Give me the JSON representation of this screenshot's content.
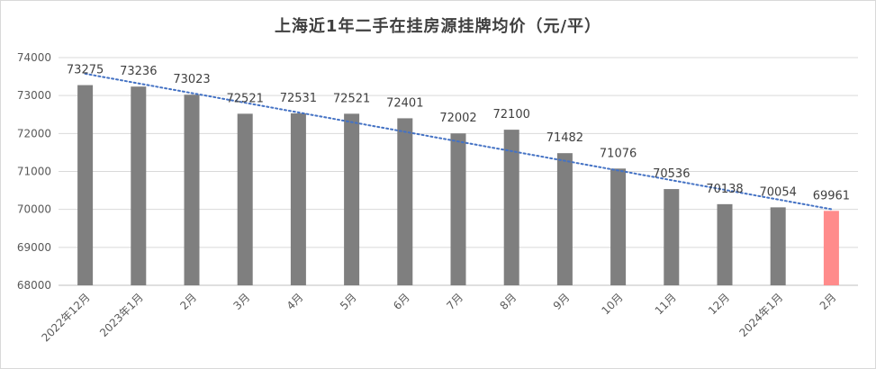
{
  "chart_data": {
    "type": "bar",
    "title": "上海近1年二手在挂房源挂牌均价（元/平）",
    "xlabel": "",
    "ylabel": "",
    "categories": [
      "2022年12月",
      "2023年1月",
      "2月",
      "3月",
      "4月",
      "5月",
      "6月",
      "7月",
      "8月",
      "9月",
      "10月",
      "11月",
      "12月",
      "2024年1月",
      "2月"
    ],
    "values": [
      73275,
      73236,
      73023,
      72521,
      72531,
      72521,
      72401,
      72002,
      72100,
      71482,
      71076,
      70536,
      70138,
      70054,
      69961
    ],
    "ylim": [
      68000,
      74000
    ],
    "yticks": [
      68000,
      69000,
      70000,
      71000,
      72000,
      73000,
      74000
    ],
    "grid": true,
    "trendline": {
      "type": "linear",
      "style": "dotted",
      "color": "#4472c4"
    },
    "colors": {
      "bar": "#7f7f7f",
      "highlight": "#ff8b8b",
      "grid": "#d9d9d9",
      "axis": "#bfbfbf"
    },
    "highlight_index": 14
  }
}
